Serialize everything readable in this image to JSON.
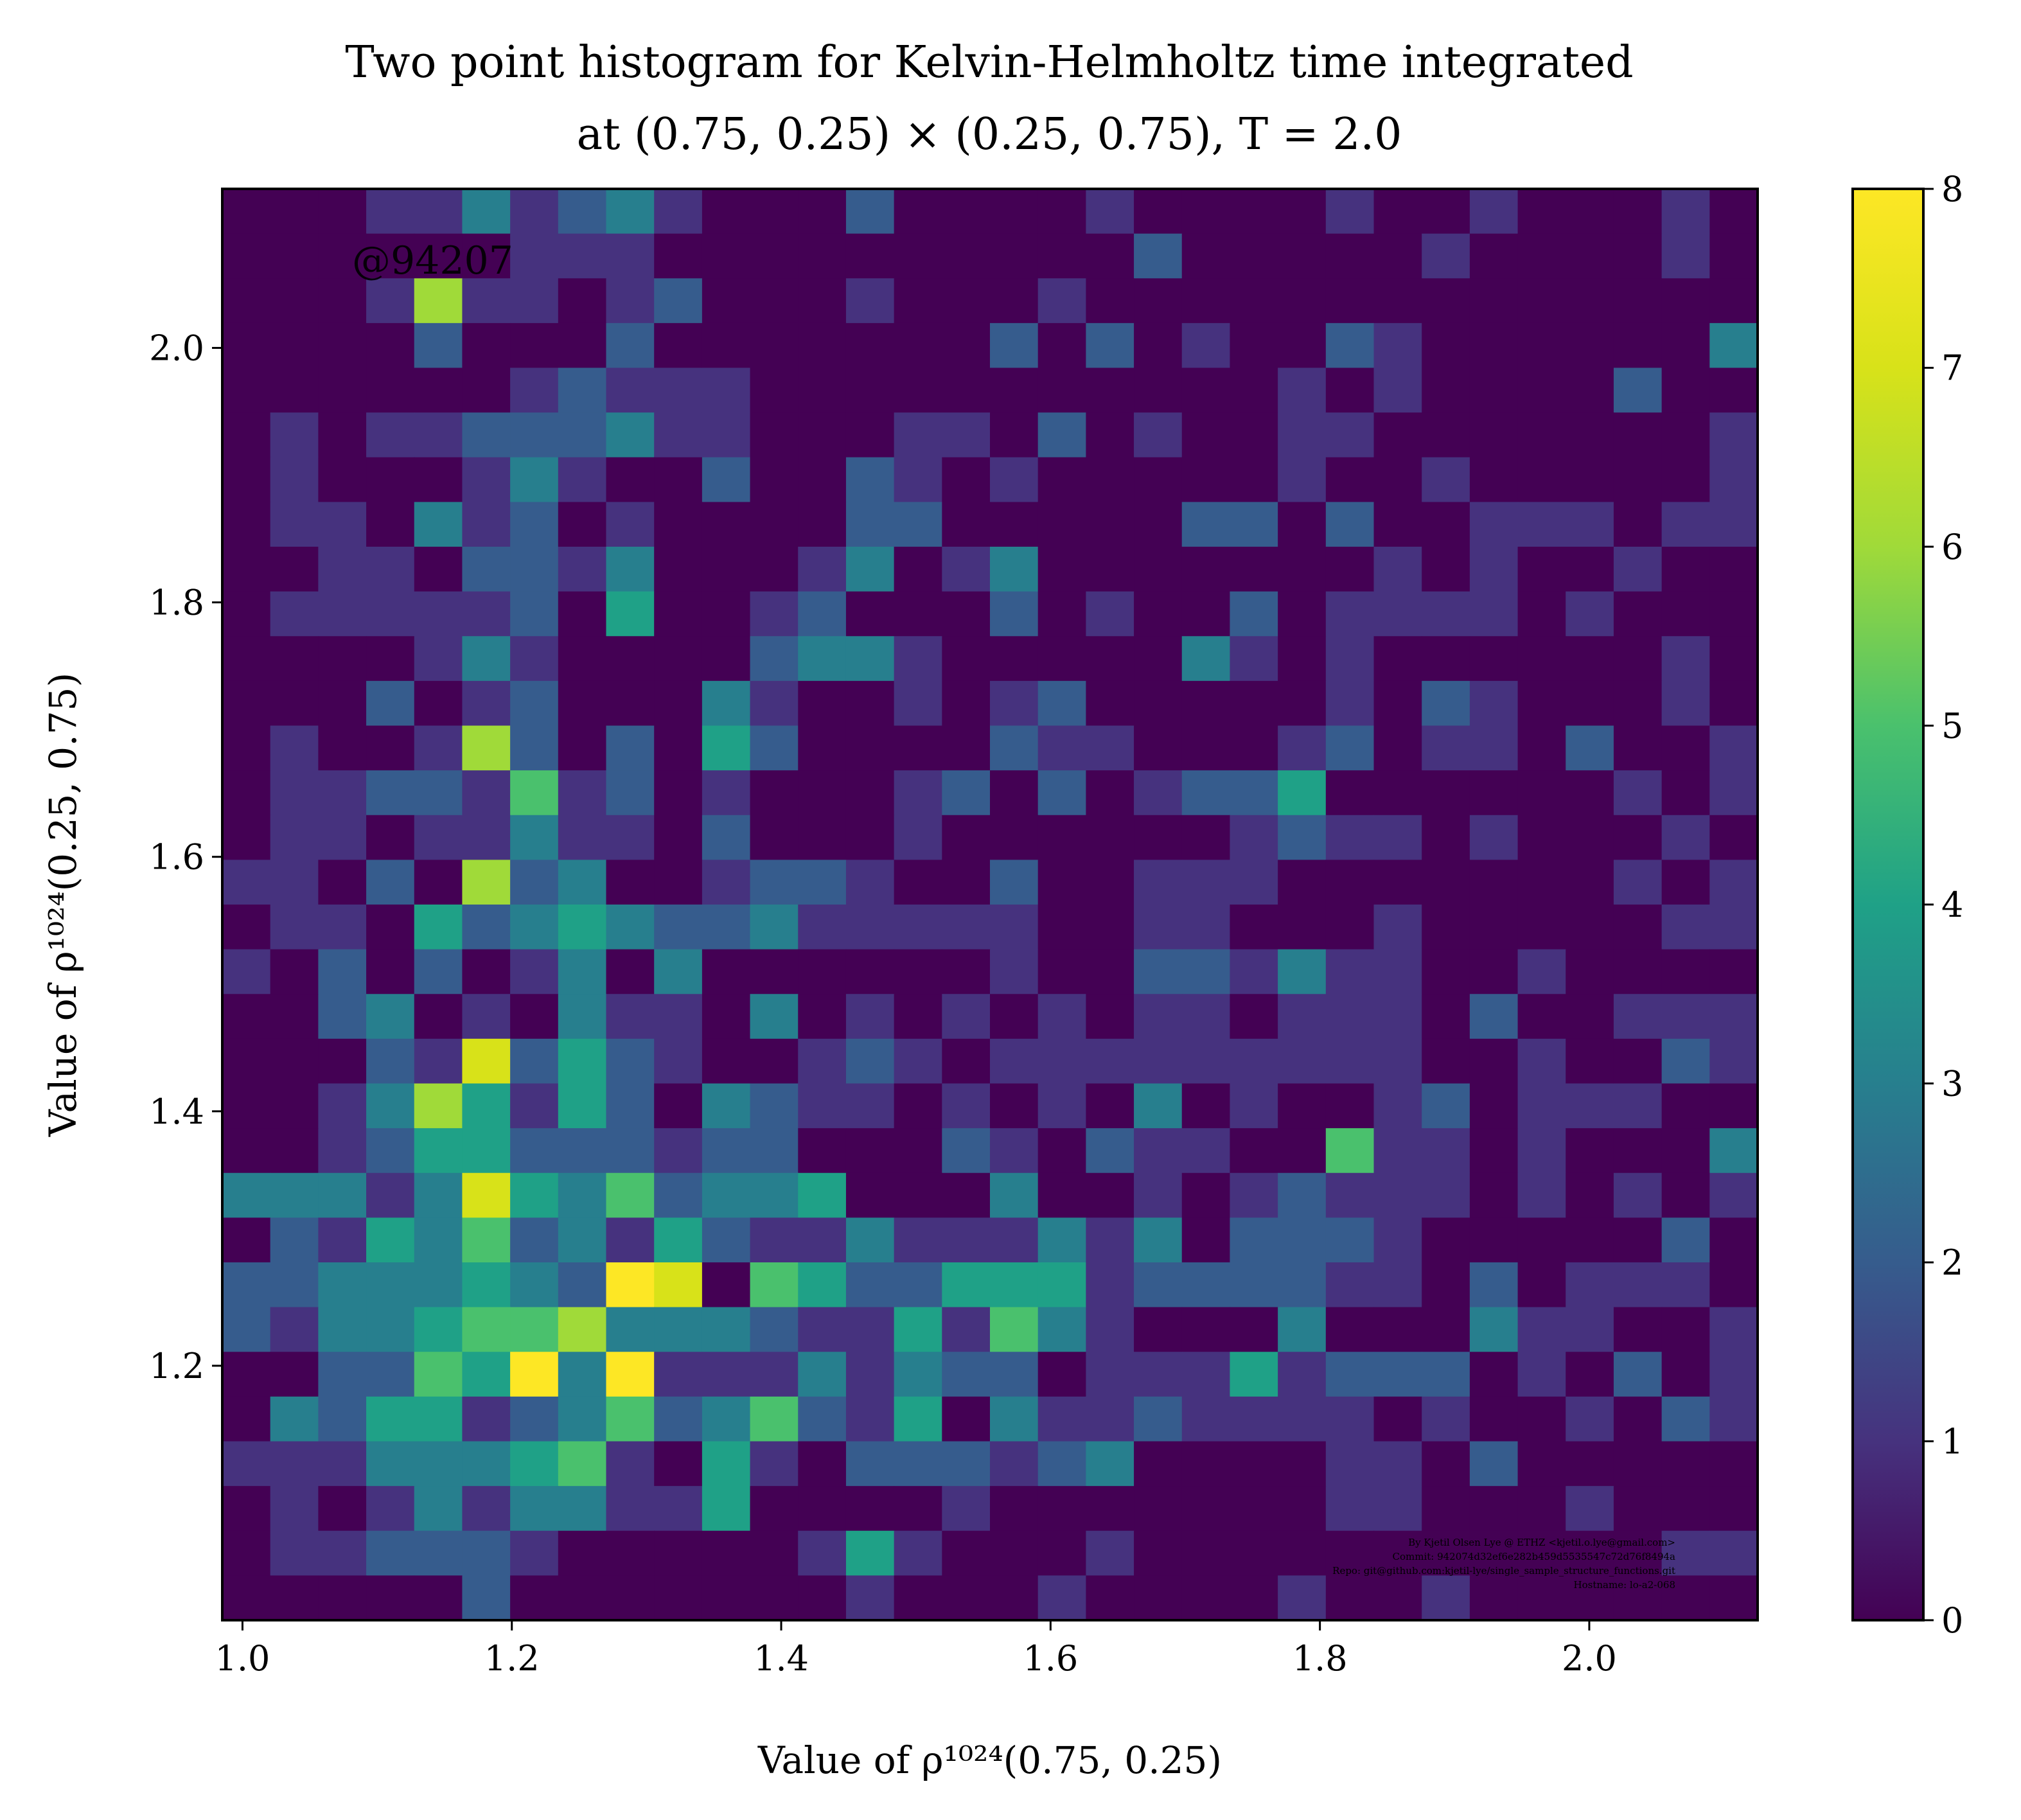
{
  "chart_data": {
    "type": "heatmap",
    "title": [
      "Two point histogram for Kelvin-Helmholtz time integrated",
      "at (0.75, 0.25) × (0.25, 0.75), T = 2.0"
    ],
    "xlabel": "Value of ρ¹⁰²⁴(0.75, 0.25)",
    "ylabel": "Value of ρ¹⁰²⁴(0.25, 0.75)",
    "xlim": [
      0.985,
      2.125
    ],
    "ylim": [
      1.0,
      2.125
    ],
    "xticks": [
      "1.0",
      "1.2",
      "1.4",
      "1.6",
      "1.8",
      "2.0"
    ],
    "xtick_values": [
      1.0,
      1.2,
      1.4,
      1.6,
      1.8,
      2.0
    ],
    "yticks": [
      "1.2",
      "1.4",
      "1.6",
      "1.8",
      "2.0"
    ],
    "ytick_values": [
      1.2,
      1.4,
      1.6,
      1.8,
      2.0
    ],
    "colorbar": {
      "min": 0,
      "max": 8,
      "ticks": [
        "0",
        "1",
        "2",
        "3",
        "4",
        "5",
        "6",
        "7",
        "8"
      ],
      "colormap": "viridis"
    },
    "grid": false,
    "bins": {
      "cols": 32,
      "rows": 32,
      "row_order": "top-to-bottom"
    },
    "counts": [
      [
        0,
        0,
        0,
        1,
        1,
        3,
        1,
        2,
        3,
        1,
        0,
        0,
        0,
        2,
        0,
        0,
        0,
        0,
        1,
        0,
        0,
        0,
        0,
        1,
        0,
        0,
        1,
        0,
        0,
        0,
        1,
        0
      ],
      [
        0,
        0,
        0,
        0,
        0,
        0,
        1,
        1,
        1,
        0,
        0,
        0,
        0,
        0,
        0,
        0,
        0,
        0,
        0,
        2,
        0,
        0,
        0,
        0,
        0,
        1,
        0,
        0,
        0,
        0,
        1,
        0
      ],
      [
        0,
        0,
        0,
        1,
        6,
        1,
        1,
        0,
        1,
        2,
        0,
        0,
        0,
        1,
        0,
        0,
        0,
        1,
        0,
        0,
        0,
        0,
        0,
        0,
        0,
        0,
        0,
        0,
        0,
        0,
        0,
        0
      ],
      [
        0,
        0,
        0,
        0,
        2,
        0,
        0,
        0,
        2,
        0,
        0,
        0,
        0,
        0,
        0,
        0,
        2,
        0,
        2,
        0,
        1,
        0,
        0,
        2,
        1,
        0,
        0,
        0,
        0,
        0,
        0,
        3
      ],
      [
        0,
        0,
        0,
        0,
        0,
        0,
        1,
        2,
        1,
        1,
        1,
        0,
        0,
        0,
        0,
        0,
        0,
        0,
        0,
        0,
        0,
        0,
        1,
        0,
        1,
        0,
        0,
        0,
        0,
        2,
        0,
        0
      ],
      [
        0,
        1,
        0,
        1,
        1,
        2,
        2,
        2,
        3,
        1,
        1,
        0,
        0,
        0,
        1,
        1,
        0,
        2,
        0,
        1,
        0,
        0,
        1,
        1,
        0,
        0,
        0,
        0,
        0,
        0,
        0,
        1
      ],
      [
        0,
        1,
        0,
        0,
        0,
        1,
        3,
        1,
        0,
        0,
        2,
        0,
        0,
        2,
        1,
        0,
        1,
        0,
        0,
        0,
        0,
        0,
        1,
        0,
        0,
        1,
        0,
        0,
        0,
        0,
        0,
        1
      ],
      [
        0,
        1,
        1,
        0,
        3,
        1,
        2,
        0,
        1,
        0,
        0,
        0,
        0,
        2,
        2,
        0,
        0,
        0,
        0,
        0,
        2,
        2,
        0,
        2,
        0,
        0,
        1,
        1,
        1,
        0,
        1,
        1
      ],
      [
        0,
        0,
        1,
        1,
        0,
        2,
        2,
        1,
        3,
        0,
        0,
        0,
        1,
        3,
        0,
        1,
        3,
        0,
        0,
        0,
        0,
        0,
        0,
        0,
        1,
        0,
        1,
        0,
        0,
        1,
        0,
        0
      ],
      [
        0,
        1,
        1,
        1,
        1,
        1,
        2,
        0,
        4,
        0,
        0,
        1,
        2,
        0,
        0,
        0,
        2,
        0,
        1,
        0,
        0,
        2,
        0,
        1,
        1,
        1,
        1,
        0,
        1,
        0,
        0,
        0
      ],
      [
        0,
        0,
        0,
        0,
        1,
        3,
        1,
        0,
        0,
        0,
        0,
        2,
        3,
        3,
        1,
        0,
        0,
        0,
        0,
        0,
        3,
        1,
        0,
        1,
        0,
        0,
        0,
        0,
        0,
        0,
        1,
        0
      ],
      [
        0,
        0,
        0,
        2,
        0,
        1,
        2,
        0,
        0,
        0,
        3,
        1,
        0,
        0,
        1,
        0,
        1,
        2,
        0,
        0,
        0,
        0,
        0,
        1,
        0,
        2,
        1,
        0,
        0,
        0,
        1,
        0
      ],
      [
        0,
        1,
        0,
        0,
        1,
        6,
        2,
        0,
        2,
        0,
        4,
        2,
        0,
        0,
        0,
        0,
        2,
        1,
        1,
        0,
        0,
        0,
        1,
        2,
        0,
        1,
        1,
        0,
        2,
        0,
        0,
        1
      ],
      [
        0,
        1,
        1,
        2,
        2,
        1,
        5,
        1,
        2,
        0,
        1,
        0,
        0,
        0,
        1,
        2,
        0,
        2,
        0,
        1,
        2,
        2,
        4,
        0,
        0,
        0,
        0,
        0,
        0,
        1,
        0,
        1
      ],
      [
        0,
        1,
        1,
        0,
        1,
        1,
        3,
        1,
        1,
        0,
        2,
        0,
        0,
        0,
        1,
        0,
        0,
        0,
        0,
        0,
        0,
        1,
        2,
        1,
        1,
        0,
        1,
        0,
        0,
        0,
        1,
        0
      ],
      [
        1,
        1,
        0,
        2,
        0,
        6,
        2,
        3,
        0,
        0,
        1,
        2,
        2,
        1,
        0,
        0,
        2,
        0,
        0,
        1,
        1,
        1,
        0,
        0,
        0,
        0,
        0,
        0,
        0,
        1,
        0,
        1
      ],
      [
        0,
        1,
        1,
        0,
        4,
        2,
        3,
        4,
        3,
        2,
        2,
        3,
        1,
        1,
        1,
        1,
        1,
        0,
        0,
        1,
        1,
        0,
        0,
        0,
        1,
        0,
        0,
        0,
        0,
        0,
        1,
        1
      ],
      [
        1,
        0,
        2,
        0,
        2,
        0,
        1,
        3,
        0,
        3,
        0,
        0,
        0,
        0,
        0,
        0,
        1,
        0,
        0,
        2,
        2,
        1,
        3,
        1,
        1,
        0,
        0,
        1,
        0,
        0,
        0,
        0
      ],
      [
        0,
        0,
        2,
        3,
        0,
        1,
        0,
        3,
        1,
        1,
        0,
        3,
        0,
        1,
        0,
        1,
        0,
        1,
        0,
        1,
        1,
        0,
        1,
        1,
        1,
        0,
        2,
        0,
        0,
        1,
        1,
        1
      ],
      [
        0,
        0,
        0,
        2,
        1,
        7,
        2,
        4,
        2,
        1,
        0,
        0,
        1,
        2,
        1,
        0,
        1,
        1,
        1,
        1,
        1,
        1,
        1,
        1,
        1,
        0,
        0,
        1,
        0,
        0,
        2,
        1
      ],
      [
        0,
        0,
        1,
        3,
        6,
        4,
        1,
        4,
        2,
        0,
        3,
        2,
        1,
        1,
        0,
        1,
        0,
        1,
        0,
        3,
        0,
        1,
        0,
        0,
        1,
        2,
        0,
        1,
        1,
        1,
        0,
        0
      ],
      [
        0,
        0,
        1,
        2,
        4,
        4,
        2,
        2,
        2,
        1,
        2,
        2,
        0,
        0,
        0,
        2,
        1,
        0,
        2,
        1,
        1,
        0,
        0,
        5,
        1,
        1,
        0,
        1,
        0,
        0,
        0,
        3
      ],
      [
        3,
        3,
        3,
        1,
        3,
        7,
        4,
        3,
        5,
        2,
        3,
        3,
        4,
        0,
        0,
        0,
        3,
        0,
        0,
        1,
        0,
        1,
        2,
        1,
        1,
        1,
        0,
        1,
        0,
        1,
        0,
        1
      ],
      [
        0,
        2,
        1,
        4,
        3,
        5,
        2,
        3,
        1,
        4,
        2,
        1,
        1,
        3,
        1,
        1,
        1,
        3,
        1,
        3,
        0,
        2,
        2,
        2,
        1,
        0,
        0,
        0,
        0,
        0,
        2,
        0
      ],
      [
        2,
        2,
        3,
        3,
        3,
        4,
        3,
        2,
        8,
        7,
        0,
        5,
        4,
        2,
        2,
        4,
        4,
        4,
        1,
        2,
        2,
        2,
        2,
        1,
        1,
        0,
        2,
        0,
        1,
        1,
        1,
        0
      ],
      [
        2,
        1,
        3,
        3,
        4,
        5,
        5,
        6,
        3,
        3,
        3,
        2,
        1,
        1,
        4,
        1,
        5,
        3,
        1,
        0,
        0,
        0,
        3,
        0,
        0,
        0,
        3,
        1,
        1,
        0,
        0,
        1
      ],
      [
        0,
        0,
        2,
        2,
        5,
        4,
        8,
        3,
        8,
        1,
        1,
        1,
        3,
        1,
        3,
        2,
        2,
        0,
        1,
        1,
        1,
        4,
        1,
        2,
        2,
        2,
        0,
        1,
        0,
        2,
        0,
        1
      ],
      [
        0,
        3,
        2,
        4,
        4,
        1,
        2,
        3,
        5,
        2,
        3,
        5,
        2,
        1,
        4,
        0,
        3,
        1,
        1,
        2,
        1,
        1,
        1,
        1,
        0,
        1,
        0,
        0,
        1,
        0,
        2,
        1
      ],
      [
        1,
        1,
        1,
        3,
        3,
        3,
        4,
        5,
        1,
        0,
        4,
        1,
        0,
        2,
        2,
        2,
        1,
        2,
        3,
        0,
        0,
        0,
        0,
        1,
        1,
        0,
        2,
        0,
        0,
        0,
        0,
        0
      ],
      [
        0,
        1,
        0,
        1,
        3,
        1,
        3,
        3,
        1,
        1,
        4,
        0,
        0,
        0,
        0,
        1,
        0,
        0,
        0,
        0,
        0,
        0,
        0,
        1,
        1,
        0,
        0,
        0,
        1,
        0,
        0,
        0
      ],
      [
        0,
        1,
        1,
        2,
        2,
        2,
        1,
        0,
        0,
        0,
        0,
        0,
        1,
        4,
        1,
        0,
        0,
        0,
        1,
        0,
        0,
        0,
        0,
        0,
        0,
        0,
        0,
        0,
        0,
        0,
        1,
        1
      ],
      [
        0,
        0,
        0,
        0,
        0,
        2,
        0,
        0,
        0,
        0,
        0,
        0,
        0,
        1,
        0,
        0,
        0,
        1,
        0,
        0,
        0,
        0,
        1,
        0,
        0,
        1,
        0,
        0,
        0,
        0,
        0,
        0
      ]
    ]
  },
  "watermark": "@94207",
  "credits": [
    "By Kjetil Olsen Lye @ ETHZ <kjetil.o.lye@gmail.com>",
    "Commit: 942074d32ef6e282b459d5535547c72d76f8494a",
    "Repo: git@github.com:kjetil-lye/single_sample_structure_functions.git",
    "Hostname: lo-a2-068"
  ]
}
